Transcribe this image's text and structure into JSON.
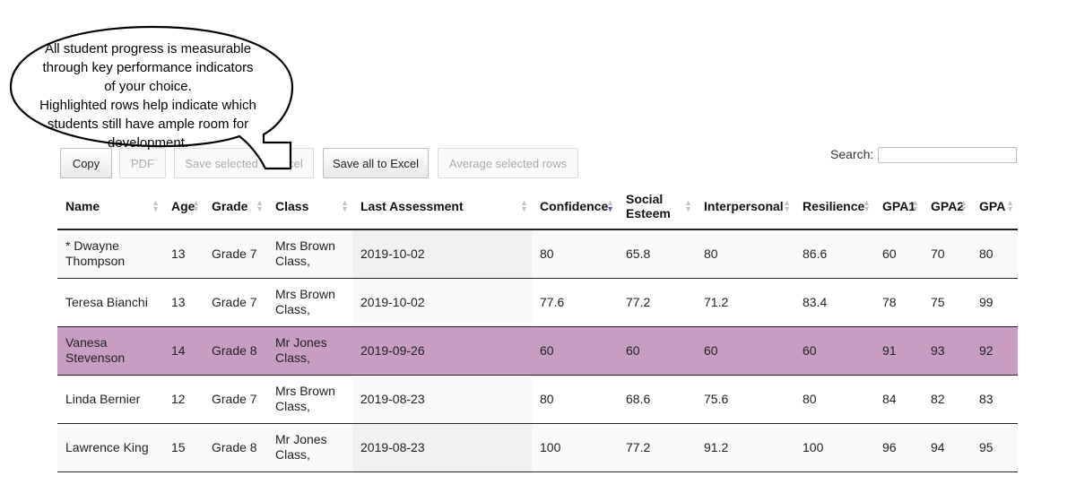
{
  "callout": {
    "lines": [
      "All student progress is measurable",
      "through  key performance indicators",
      "of your choice.",
      "Highlighted rows help indicate which",
      "students still have ample room for",
      "development."
    ]
  },
  "toolbar": {
    "copy_label": "Copy",
    "pdf_label": "PDF",
    "save_selected_label": "Save selected to Excel",
    "save_all_label": "Save all to Excel",
    "average_selected_label": "Average selected rows"
  },
  "search": {
    "label": "Search:",
    "value": "",
    "placeholder": ""
  },
  "table": {
    "columns": [
      "Name",
      "Age",
      "Grade",
      "Class",
      "Last Assessment",
      "Confidence",
      "Social Esteem",
      "Interpersonal",
      "Resilience",
      "GPA1",
      "GPA2",
      "GPA"
    ],
    "sorted_column": "Confidence",
    "rows": [
      {
        "name": "* Dwayne Thompson",
        "age": "13",
        "grade": "Grade 7",
        "class": "Mrs Brown Class,",
        "last_assessment": "2019-10-02",
        "confidence": "80",
        "social_esteem": "65.8",
        "interpersonal": "80",
        "resilience": "86.6",
        "gpa1": "60",
        "gpa2": "70",
        "gpa": "80",
        "highlighted": false
      },
      {
        "name": "Teresa Bianchi",
        "age": "13",
        "grade": "Grade 7",
        "class": "Mrs Brown Class,",
        "last_assessment": "2019-10-02",
        "confidence": "77.6",
        "social_esteem": "77.2",
        "interpersonal": "71.2",
        "resilience": "83.4",
        "gpa1": "78",
        "gpa2": "75",
        "gpa": "99",
        "highlighted": false
      },
      {
        "name": "Vanesa Stevenson",
        "age": "14",
        "grade": "Grade 8",
        "class": "Mr Jones Class,",
        "last_assessment": "2019-09-26",
        "confidence": "60",
        "social_esteem": "60",
        "interpersonal": "60",
        "resilience": "60",
        "gpa1": "91",
        "gpa2": "93",
        "gpa": "92",
        "highlighted": true
      },
      {
        "name": "Linda Bernier",
        "age": "12",
        "grade": "Grade 7",
        "class": "Mrs Brown Class,",
        "last_assessment": "2019-08-23",
        "confidence": "80",
        "social_esteem": "68.6",
        "interpersonal": "75.6",
        "resilience": "80",
        "gpa1": "84",
        "gpa2": "82",
        "gpa": "83",
        "highlighted": false
      },
      {
        "name": "Lawrence King",
        "age": "15",
        "grade": "Grade 8",
        "class": "Mr Jones Class,",
        "last_assessment": "2019-08-23",
        "confidence": "100",
        "social_esteem": "77.2",
        "interpersonal": "91.2",
        "resilience": "100",
        "gpa1": "96",
        "gpa2": "94",
        "gpa": "95",
        "highlighted": false
      }
    ]
  },
  "colors": {
    "highlight_row": "#c89cc3",
    "active_sort_arrow": "#5b5bb8"
  },
  "icons": {
    "sort": "sort-arrows-icon"
  }
}
